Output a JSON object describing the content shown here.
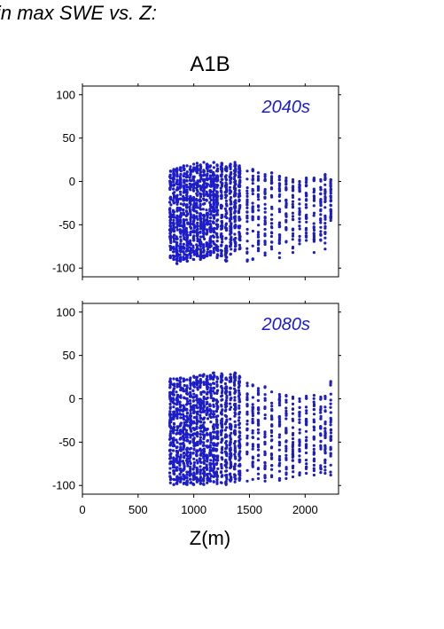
{
  "figure_title": "in max SWE vs. Z:",
  "chart_data": {
    "type": "scatter",
    "title": "A1B",
    "xlabel": "Z(m)",
    "ylabel": "",
    "xlim": [
      0,
      2300
    ],
    "ylim": [
      -110,
      110
    ],
    "xticks": [
      0,
      500,
      1000,
      1500,
      2000
    ],
    "yticks": [
      -100,
      -50,
      0,
      50,
      100
    ],
    "grid": false,
    "point_color": "#1c1cc8",
    "annotation_color": "#1c1cc8",
    "panels": [
      {
        "annotation": "2040s",
        "elevation_bands": [
          {
            "x": 790,
            "ymin": -88,
            "ymax": 12
          },
          {
            "x": 820,
            "ymin": -90,
            "ymax": 14
          },
          {
            "x": 850,
            "ymin": -95,
            "ymax": 15
          },
          {
            "x": 880,
            "ymin": -92,
            "ymax": 16
          },
          {
            "x": 910,
            "ymin": -90,
            "ymax": 18
          },
          {
            "x": 940,
            "ymin": -92,
            "ymax": 18
          },
          {
            "x": 970,
            "ymin": -88,
            "ymax": 17
          },
          {
            "x": 1000,
            "ymin": -90,
            "ymax": 20
          },
          {
            "x": 1030,
            "ymin": -86,
            "ymax": 21
          },
          {
            "x": 1060,
            "ymin": -90,
            "ymax": 19
          },
          {
            "x": 1090,
            "ymin": -88,
            "ymax": 22
          },
          {
            "x": 1120,
            "ymin": -86,
            "ymax": 20
          },
          {
            "x": 1150,
            "ymin": -85,
            "ymax": 18
          },
          {
            "x": 1180,
            "ymin": -82,
            "ymax": 22
          },
          {
            "x": 1210,
            "ymin": -88,
            "ymax": 19
          },
          {
            "x": 1250,
            "ymin": -86,
            "ymax": 21
          },
          {
            "x": 1290,
            "ymin": -92,
            "ymax": 17
          },
          {
            "x": 1330,
            "ymin": -84,
            "ymax": 20
          },
          {
            "x": 1370,
            "ymin": -80,
            "ymax": 22
          },
          {
            "x": 1410,
            "ymin": -78,
            "ymax": 18
          },
          {
            "x": 1480,
            "ymin": -92,
            "ymax": 12
          },
          {
            "x": 1530,
            "ymin": -90,
            "ymax": 14
          },
          {
            "x": 1580,
            "ymin": -80,
            "ymax": 10
          },
          {
            "x": 1640,
            "ymin": -85,
            "ymax": 8
          },
          {
            "x": 1700,
            "ymin": -78,
            "ymax": 10
          },
          {
            "x": 1770,
            "ymin": -88,
            "ymax": 6
          },
          {
            "x": 1830,
            "ymin": -70,
            "ymax": 4
          },
          {
            "x": 1890,
            "ymin": -82,
            "ymax": 2
          },
          {
            "x": 1950,
            "ymin": -72,
            "ymax": 0
          },
          {
            "x": 2010,
            "ymin": -68,
            "ymax": 4
          },
          {
            "x": 2080,
            "ymin": -82,
            "ymax": 4
          },
          {
            "x": 2140,
            "ymin": -68,
            "ymax": 2
          },
          {
            "x": 2180,
            "ymin": -78,
            "ymax": 8
          },
          {
            "x": 2230,
            "ymin": -45,
            "ymax": 2
          }
        ]
      },
      {
        "annotation": "2080s",
        "elevation_bands": [
          {
            "x": 790,
            "ymin": -97,
            "ymax": 23
          },
          {
            "x": 820,
            "ymin": -99,
            "ymax": 23
          },
          {
            "x": 850,
            "ymin": -98,
            "ymax": 23
          },
          {
            "x": 880,
            "ymin": -96,
            "ymax": 24
          },
          {
            "x": 910,
            "ymin": -98,
            "ymax": 23
          },
          {
            "x": 940,
            "ymin": -99,
            "ymax": 22
          },
          {
            "x": 970,
            "ymin": -97,
            "ymax": 24
          },
          {
            "x": 1000,
            "ymin": -99,
            "ymax": 26
          },
          {
            "x": 1030,
            "ymin": -96,
            "ymax": 25
          },
          {
            "x": 1060,
            "ymin": -98,
            "ymax": 27
          },
          {
            "x": 1090,
            "ymin": -99,
            "ymax": 28
          },
          {
            "x": 1120,
            "ymin": -97,
            "ymax": 26
          },
          {
            "x": 1150,
            "ymin": -95,
            "ymax": 27
          },
          {
            "x": 1180,
            "ymin": -96,
            "ymax": 30
          },
          {
            "x": 1210,
            "ymin": -98,
            "ymax": 25
          },
          {
            "x": 1250,
            "ymin": -97,
            "ymax": 29
          },
          {
            "x": 1290,
            "ymin": -99,
            "ymax": 24
          },
          {
            "x": 1330,
            "ymin": -95,
            "ymax": 28
          },
          {
            "x": 1370,
            "ymin": -96,
            "ymax": 30
          },
          {
            "x": 1410,
            "ymin": -94,
            "ymax": 26
          },
          {
            "x": 1480,
            "ymin": -95,
            "ymax": 18
          },
          {
            "x": 1530,
            "ymin": -93,
            "ymax": 16
          },
          {
            "x": 1580,
            "ymin": -92,
            "ymax": 12
          },
          {
            "x": 1640,
            "ymin": -95,
            "ymax": 14
          },
          {
            "x": 1700,
            "ymin": -90,
            "ymax": 8
          },
          {
            "x": 1770,
            "ymin": -94,
            "ymax": 5
          },
          {
            "x": 1830,
            "ymin": -92,
            "ymax": 4
          },
          {
            "x": 1890,
            "ymin": -90,
            "ymax": 2
          },
          {
            "x": 1950,
            "ymin": -88,
            "ymax": 0
          },
          {
            "x": 2010,
            "ymin": -86,
            "ymax": 3
          },
          {
            "x": 2080,
            "ymin": -88,
            "ymax": 4
          },
          {
            "x": 2140,
            "ymin": -85,
            "ymax": 2
          },
          {
            "x": 2180,
            "ymin": -86,
            "ymax": 3
          },
          {
            "x": 2230,
            "ymin": -88,
            "ymax": 20
          }
        ]
      }
    ]
  }
}
